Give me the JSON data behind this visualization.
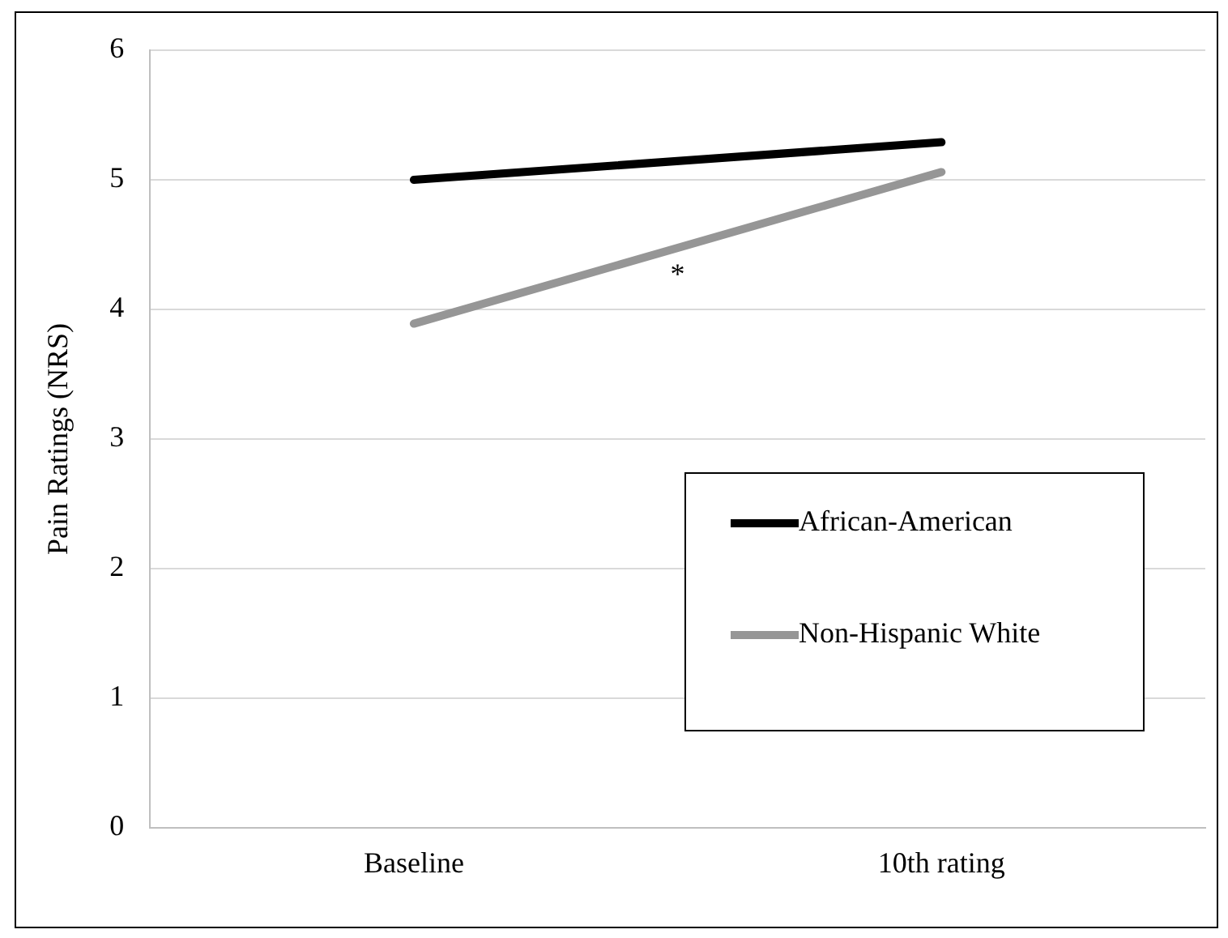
{
  "chart_data": {
    "type": "line",
    "ylabel": "Pain Ratings (NRS)",
    "categories": [
      "Baseline",
      "10th rating"
    ],
    "series": [
      {
        "name": "African-American",
        "color": "#000000",
        "values": [
          5.0,
          5.29
        ]
      },
      {
        "name": "Non-Hispanic White",
        "color": "#969696",
        "values": [
          3.89,
          5.06
        ]
      }
    ],
    "ylim": [
      0,
      6
    ],
    "yticks": [
      0,
      1,
      2,
      3,
      4,
      5,
      6
    ],
    "grid": "y",
    "legend": "bottom right",
    "marker": "none",
    "line_style": "solid",
    "annotations": [
      "*"
    ]
  }
}
